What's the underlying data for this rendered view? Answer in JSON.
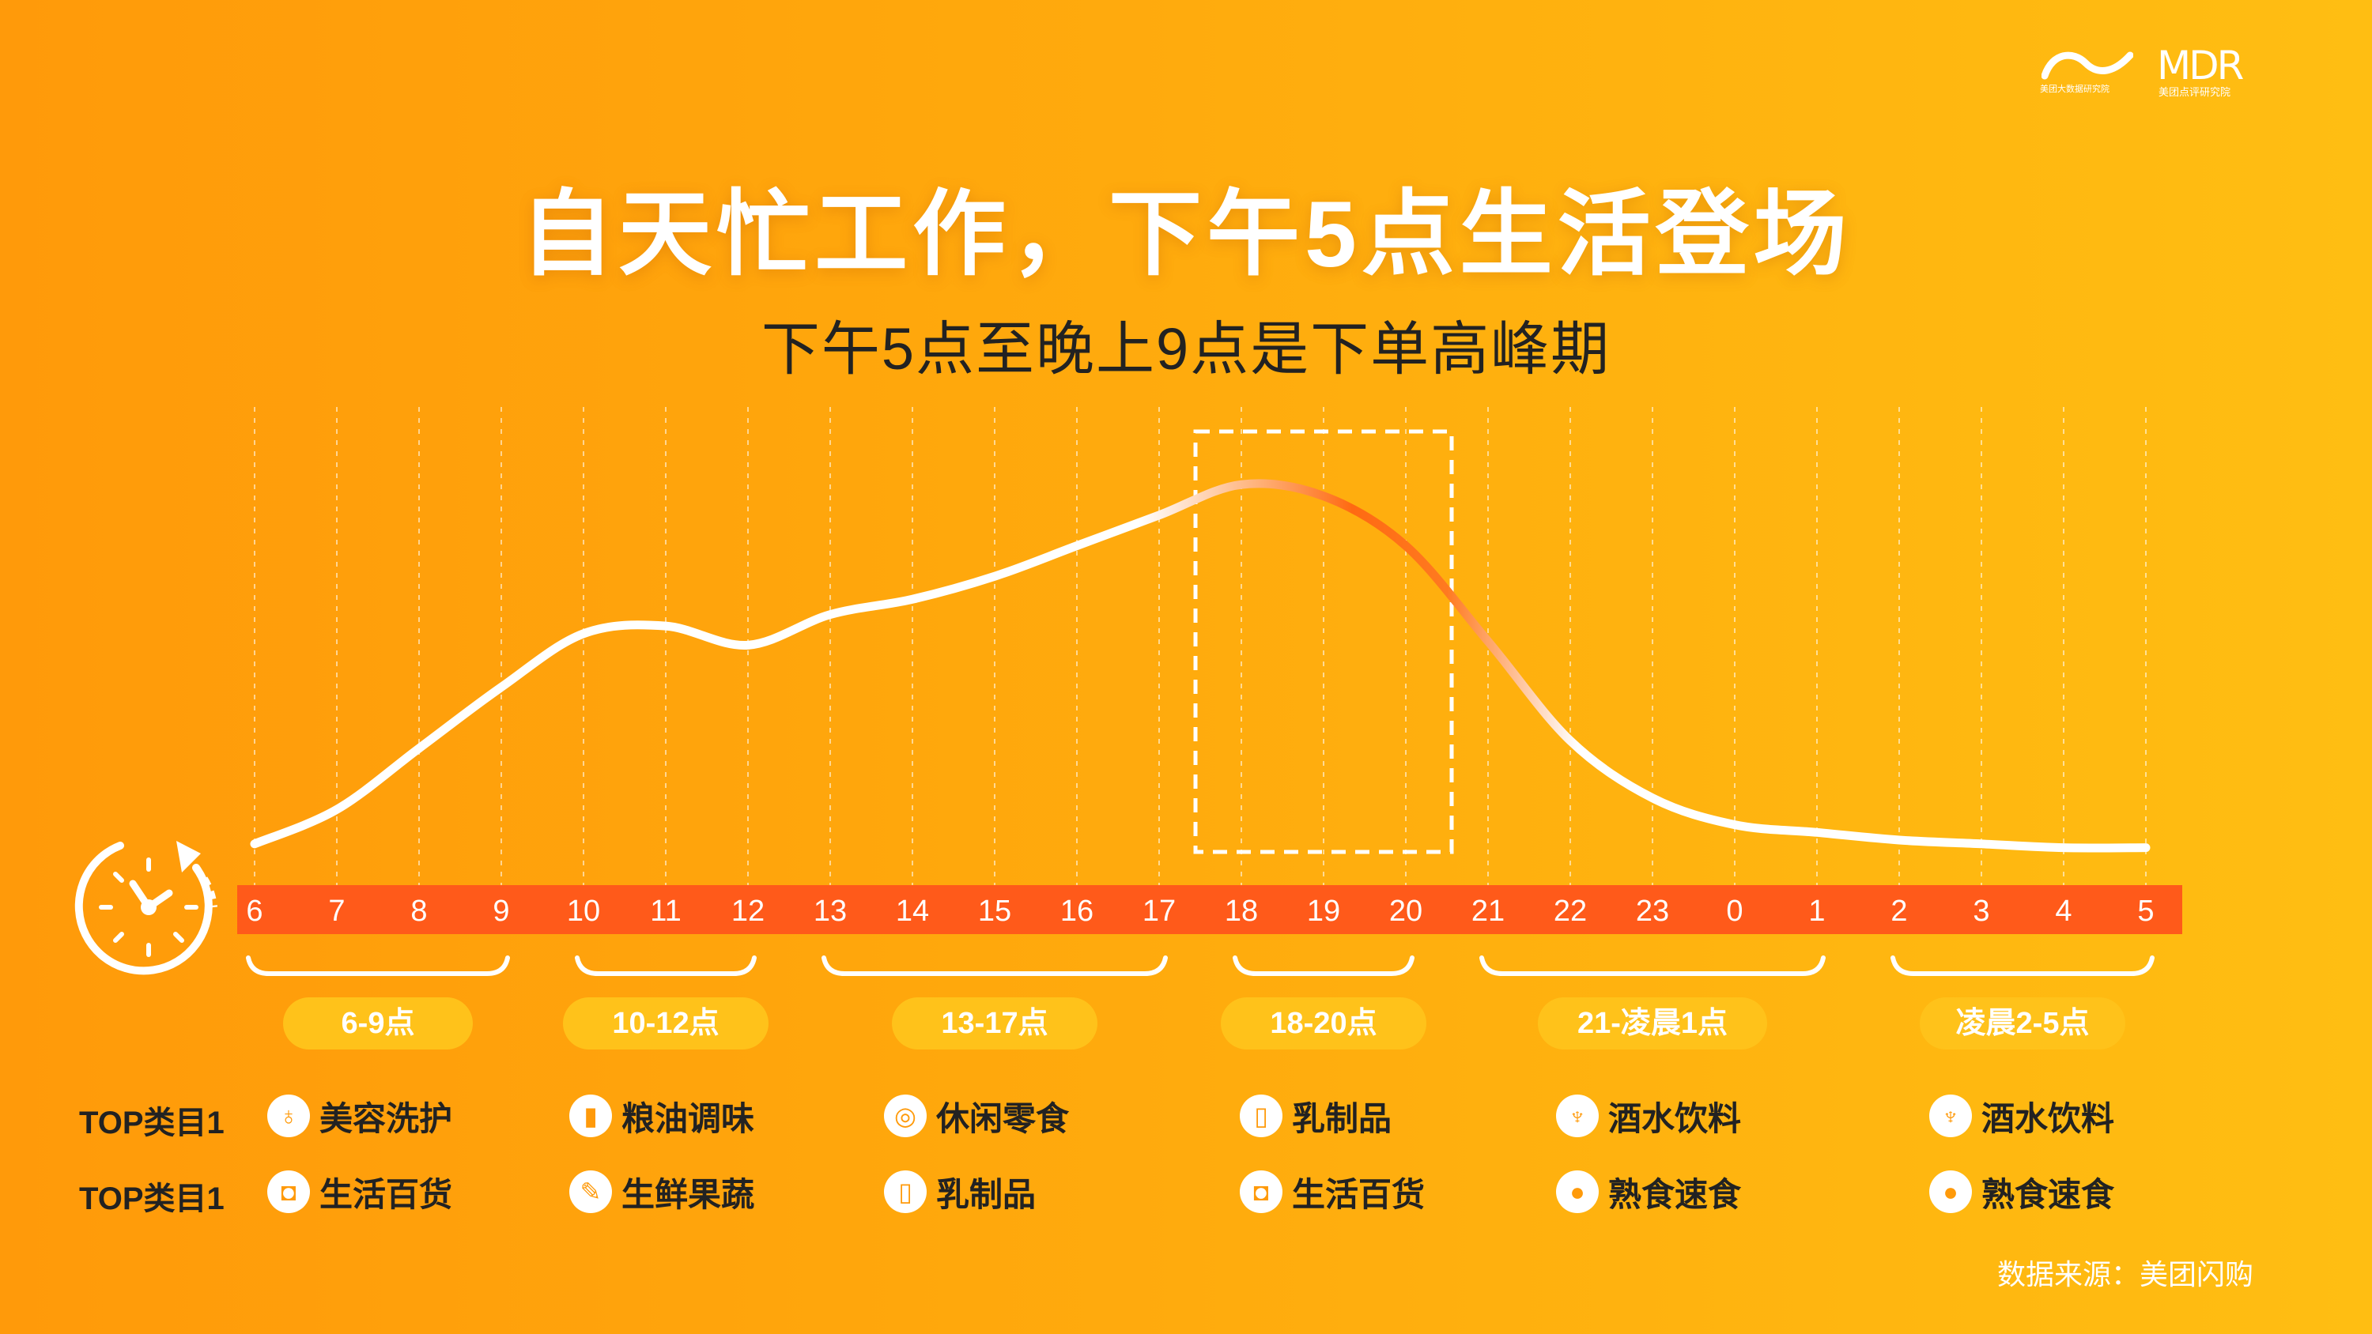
{
  "logos": {
    "left_caption": "美团大数据研究院",
    "right_wordmark": "MDR",
    "right_caption": "美团点评研究院"
  },
  "title": "自天忙工作，下午5点生活登场",
  "subtitle": "下午5点至晚上9点是下单高峰期",
  "colors": {
    "background": "#ffa00b",
    "line": "#ffffff",
    "peak_line": "#ff6a12",
    "axis_bar": "#ff5a1a",
    "pill": "#ffc21a"
  },
  "chart_data": {
    "type": "line",
    "title": "自天忙工作，下午5点生活登场",
    "subtitle": "下午5点至晚上9点是下单高峰期",
    "xlabel": "",
    "ylabel": "",
    "grid": true,
    "x": [
      "6",
      "7",
      "8",
      "9",
      "10",
      "11",
      "12",
      "13",
      "14",
      "15",
      "16",
      "17",
      "18",
      "19",
      "20",
      "21",
      "22",
      "23",
      "0",
      "1",
      "2",
      "3",
      "4",
      "5"
    ],
    "series": [
      {
        "values": [
          0.05,
          0.14,
          0.3,
          0.46,
          0.6,
          0.62,
          0.57,
          0.65,
          0.69,
          0.75,
          0.83,
          0.91,
          0.99,
          0.96,
          0.83,
          0.58,
          0.32,
          0.17,
          0.1,
          0.08,
          0.06,
          0.05,
          0.04,
          0.04
        ]
      }
    ],
    "highlight_range": [
      "18",
      "20"
    ],
    "ylim": [
      0,
      1.1
    ]
  },
  "periods": [
    {
      "label": "6-9点",
      "from": "6",
      "to": "9"
    },
    {
      "label": "10-12点",
      "from": "10",
      "to": "12"
    },
    {
      "label": "13-17点",
      "from": "13",
      "to": "17"
    },
    {
      "label": "18-20点",
      "from": "18",
      "to": "20"
    },
    {
      "label": "21-凌晨1点",
      "from": "21",
      "to": "1"
    },
    {
      "label": "凌晨2-5点",
      "from": "2",
      "to": "5"
    }
  ],
  "rows": [
    {
      "label": "TOP类目1",
      "items": [
        {
          "icon": "cosmetics-bottle-icon",
          "text": "美容洗护"
        },
        {
          "icon": "oil-bottles-icon",
          "text": "粮油调味"
        },
        {
          "icon": "lollipop-icon",
          "text": "休闲零食"
        },
        {
          "icon": "milk-bottle-icon",
          "text": "乳制品"
        },
        {
          "icon": "wine-glass-icon",
          "text": "酒水饮料"
        },
        {
          "icon": "wine-glass-icon",
          "text": "酒水饮料"
        }
      ]
    },
    {
      "label": "TOP类目1",
      "items": [
        {
          "icon": "shopping-bag-icon",
          "text": "生活百货"
        },
        {
          "icon": "carrot-icon",
          "text": "生鲜果蔬"
        },
        {
          "icon": "milk-bottle-icon",
          "text": "乳制品"
        },
        {
          "icon": "shopping-bag-icon",
          "text": "生活百货"
        },
        {
          "icon": "roast-chicken-icon",
          "text": "熟食速食"
        },
        {
          "icon": "roast-chicken-icon",
          "text": "熟食速食"
        }
      ]
    }
  ],
  "source": "数据来源：美团闪购"
}
